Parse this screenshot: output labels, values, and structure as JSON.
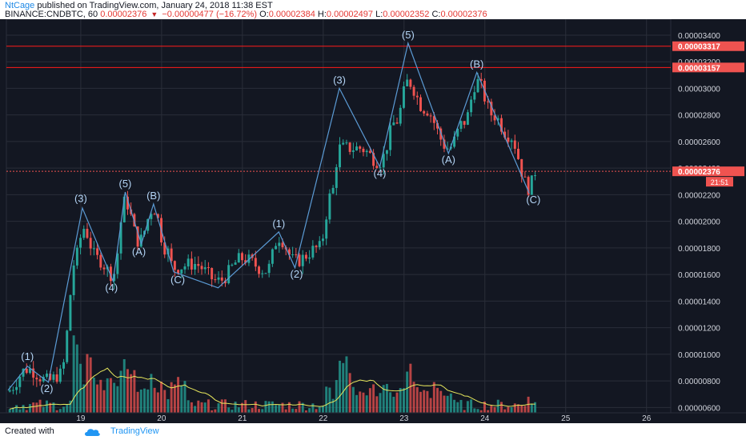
{
  "header": {
    "author": "NtCage",
    "published_text": "published on TradingView.com, January 24, 2018 11:38 EST",
    "symbol": "BINANCE:CNDBTC, 60",
    "last_price": "0.00002376",
    "change": "−0.00000477 (−16.72%)",
    "o_label": "O:",
    "o_value": "0.00002384",
    "h_label": "H:",
    "h_value": "0.00002497",
    "l_label": "L:",
    "l_value": "0.00002352",
    "c_label": "C:",
    "c_value": "0.00002376"
  },
  "footer": {
    "created_with": "Created with",
    "brand": "TradingView"
  },
  "colors": {
    "background": "#131722",
    "grid": "#2a2e39",
    "up": "#26a69a",
    "down": "#ef5350",
    "wave": "#5b9bd5",
    "volume_ma": "#e6e65c",
    "resistance": "#ff1a1a",
    "label_text": "#ffffff",
    "countdown_bg": "#ef5350"
  },
  "chart_data": {
    "type": "candlestick",
    "x_unit": "day of January 2018 (hourly candles)",
    "x_ticks": [
      "19",
      "20",
      "21",
      "22",
      "23",
      "24",
      "25",
      "26"
    ],
    "x_range": [
      18.08,
      26.3
    ],
    "y_range": [
      5.6e-06,
      3.52e-05
    ],
    "y_ticks": [
      "0.00000600",
      "0.00000800",
      "0.00001000",
      "0.00001200",
      "0.00001400",
      "0.00001600",
      "0.00001800",
      "0.00002000",
      "0.00002200",
      "0.00002400",
      "0.00002600",
      "0.00002800",
      "0.00003000",
      "0.00003200",
      "0.00003400"
    ],
    "grid": true,
    "price_labels": [
      {
        "text": "0.00003317",
        "value": 3.317e-05,
        "kind": "resistance"
      },
      {
        "text": "0.00003157",
        "value": 3.157e-05,
        "kind": "resistance"
      },
      {
        "text": "0.00002376",
        "value": 2.376e-05,
        "kind": "last"
      }
    ],
    "countdown": "21:51",
    "resistance_lines": [
      3.317e-05,
      3.157e-05
    ],
    "wave_path": [
      {
        "x": 18.1,
        "y": 7.3e-06
      },
      {
        "x": 18.34,
        "y": 9.1e-06
      },
      {
        "x": 18.6,
        "y": 7.9e-06
      },
      {
        "x": 19.02,
        "y": 2.1e-05
      },
      {
        "x": 19.4,
        "y": 1.55e-05
      },
      {
        "x": 19.55,
        "y": 2.22e-05
      },
      {
        "x": 19.75,
        "y": 1.83e-05
      },
      {
        "x": 19.9,
        "y": 2.13e-05
      },
      {
        "x": 20.15,
        "y": 1.62e-05
      },
      {
        "x": 20.7,
        "y": 1.5e-05
      },
      {
        "x": 21.45,
        "y": 1.92e-05
      },
      {
        "x": 21.65,
        "y": 1.65e-05
      },
      {
        "x": 22.2,
        "y": 3e-05
      },
      {
        "x": 22.7,
        "y": 2.41e-05
      },
      {
        "x": 23.05,
        "y": 3.34e-05
      },
      {
        "x": 23.55,
        "y": 2.51e-05
      },
      {
        "x": 23.9,
        "y": 3.12e-05
      },
      {
        "x": 24.55,
        "y": 2.21e-05
      }
    ],
    "wave_labels": [
      {
        "text": "(1)",
        "x": 18.34,
        "y": 9.8e-06
      },
      {
        "text": "(2)",
        "x": 18.58,
        "y": 7.4e-06
      },
      {
        "text": "(3)",
        "x": 19.0,
        "y": 2.17e-05
      },
      {
        "text": "(4)",
        "x": 19.38,
        "y": 1.5e-05
      },
      {
        "text": "(5)",
        "x": 19.55,
        "y": 2.28e-05
      },
      {
        "text": "(A)",
        "x": 19.72,
        "y": 1.77e-05
      },
      {
        "text": "(B)",
        "x": 19.9,
        "y": 2.19e-05
      },
      {
        "text": "(C)",
        "x": 20.2,
        "y": 1.56e-05
      },
      {
        "text": "(1)",
        "x": 21.45,
        "y": 1.98e-05
      },
      {
        "text": "(2)",
        "x": 21.67,
        "y": 1.6e-05
      },
      {
        "text": "(3)",
        "x": 22.2,
        "y": 3.06e-05
      },
      {
        "text": "(4)",
        "x": 22.7,
        "y": 2.36e-05
      },
      {
        "text": "(5)",
        "x": 23.05,
        "y": 3.4e-05
      },
      {
        "text": "(A)",
        "x": 23.55,
        "y": 2.46e-05
      },
      {
        "text": "(B)",
        "x": 23.9,
        "y": 3.18e-05
      },
      {
        "text": "(C)",
        "x": 24.6,
        "y": 2.16e-05
      }
    ],
    "series": [
      {
        "name": "price",
        "knots": [
          [
            18.08,
            7.2e-06
          ],
          [
            18.34,
            8.9e-06
          ],
          [
            18.6,
            8e-06
          ],
          [
            18.75,
            8.5e-06
          ],
          [
            18.95,
            1.75e-05
          ],
          [
            19.03,
            1.95e-05
          ],
          [
            19.2,
            1.72e-05
          ],
          [
            19.4,
            1.6e-05
          ],
          [
            19.55,
            2.15e-05
          ],
          [
            19.72,
            1.85e-05
          ],
          [
            19.9,
            2.1e-05
          ],
          [
            20.05,
            1.8e-05
          ],
          [
            20.15,
            1.65e-05
          ],
          [
            20.4,
            1.68e-05
          ],
          [
            20.7,
            1.55e-05
          ],
          [
            21.0,
            1.72e-05
          ],
          [
            21.3,
            1.63e-05
          ],
          [
            21.45,
            1.88e-05
          ],
          [
            21.65,
            1.7e-05
          ],
          [
            21.95,
            1.8e-05
          ],
          [
            22.1,
            2.2e-05
          ],
          [
            22.2,
            2.55e-05
          ],
          [
            22.45,
            2.55e-05
          ],
          [
            22.7,
            2.45e-05
          ],
          [
            22.9,
            2.75e-05
          ],
          [
            23.05,
            3.05e-05
          ],
          [
            23.25,
            2.85e-05
          ],
          [
            23.55,
            2.55e-05
          ],
          [
            23.75,
            2.75e-05
          ],
          [
            23.9,
            3.05e-05
          ],
          [
            24.1,
            2.8e-05
          ],
          [
            24.3,
            2.65e-05
          ],
          [
            24.55,
            2.25e-05
          ],
          [
            24.63,
            2.38e-05
          ]
        ]
      },
      {
        "name": "volume",
        "peaks": [
          {
            "x": 18.95,
            "h": 95
          },
          {
            "x": 19.1,
            "h": 65
          },
          {
            "x": 19.55,
            "h": 75
          },
          {
            "x": 19.65,
            "h": 40
          },
          {
            "x": 22.2,
            "h": 70
          },
          {
            "x": 22.3,
            "h": 60
          },
          {
            "x": 23.05,
            "h": 50
          },
          {
            "x": 24.55,
            "h": 10
          }
        ]
      }
    ]
  }
}
